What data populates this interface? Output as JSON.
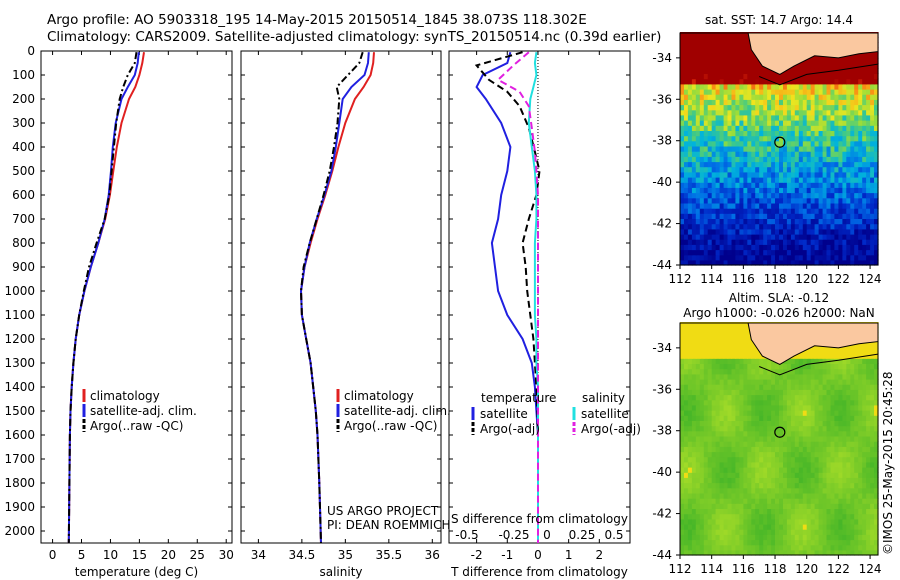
{
  "header": {
    "line1": "Argo profile: AO 5903318_195 14-May-2015 20150514_1845 38.073S 118.302E",
    "line2": "Climatology: CARS2009. Satellite-adjusted climatology: synTS_20150514.nc (0.39d earlier)"
  },
  "sidebar_stamp": "©IMOS 25-May-2015 20:45:28",
  "chart_data": [
    {
      "type": "line",
      "xlabel": "temperature (deg C)",
      "ylabel": "",
      "xlim": [
        -2,
        31
      ],
      "ylim": [
        2050,
        0
      ],
      "xticks": [
        0,
        5,
        10,
        15,
        20,
        25,
        30
      ],
      "yticks": [
        0,
        100,
        200,
        300,
        400,
        500,
        600,
        700,
        800,
        900,
        1000,
        1100,
        1200,
        1300,
        1400,
        1500,
        1600,
        1700,
        1800,
        1900,
        2000
      ],
      "legend": [
        "climatology",
        "satellite-adj. clim.",
        "Argo(..raw -QC)"
      ],
      "legend_colors": [
        "#e02020",
        "#2020e0",
        "#000000"
      ],
      "series": [
        {
          "name": "climatology",
          "color": "#e02020",
          "style": "solid",
          "x": [
            15.8,
            15.5,
            15.0,
            14.3,
            13.2,
            11.9,
            11.1,
            10.5,
            9.9,
            9.1,
            7.9,
            6.6,
            5.5,
            4.6,
            4.0,
            3.6,
            3.3,
            3.1,
            3.0,
            2.9,
            2.8
          ],
          "y": [
            5,
            50,
            100,
            150,
            200,
            300,
            400,
            500,
            600,
            700,
            800,
            900,
            1000,
            1100,
            1200,
            1300,
            1400,
            1500,
            1600,
            1800,
            2050
          ]
        },
        {
          "name": "satellite-adj. clim.",
          "color": "#2020e0",
          "style": "solid",
          "x": [
            14.9,
            14.7,
            14.2,
            13.0,
            11.9,
            10.9,
            10.4,
            10.1,
            9.7,
            9.0,
            7.9,
            6.6,
            5.5,
            4.6,
            4.0,
            3.6,
            3.3,
            3.1,
            3.0,
            2.9,
            2.8
          ],
          "y": [
            5,
            50,
            100,
            150,
            200,
            300,
            400,
            500,
            600,
            700,
            800,
            900,
            1000,
            1100,
            1200,
            1300,
            1400,
            1500,
            1600,
            1800,
            2050
          ]
        },
        {
          "name": "Argo(..raw -QC)",
          "color": "#000000",
          "style": "dashdot",
          "x": [
            14.5,
            14.2,
            13.0,
            12.2,
            11.6,
            11.0,
            10.6,
            10.2,
            9.8,
            9.0,
            7.6,
            6.3,
            5.4,
            4.6,
            4.0,
            3.6,
            3.3,
            3.1,
            3.0,
            2.9,
            2.8
          ],
          "y": [
            5,
            50,
            100,
            150,
            200,
            300,
            400,
            500,
            600,
            700,
            800,
            900,
            1000,
            1100,
            1200,
            1300,
            1400,
            1500,
            1600,
            1800,
            2050
          ]
        }
      ]
    },
    {
      "type": "line",
      "xlabel": "salinity",
      "ylabel": "",
      "xlim": [
        33.8,
        36.1
      ],
      "ylim": [
        2050,
        0
      ],
      "xticks": [
        34,
        34.5,
        35,
        35.5,
        36
      ],
      "legend": [
        "climatology",
        "satellite-adj. clim.",
        "Argo(..raw -QC)"
      ],
      "legend_colors": [
        "#e02020",
        "#2020e0",
        "#000000"
      ],
      "annotation": [
        "US ARGO PROJECT",
        "PI: DEAN ROEMMICH"
      ],
      "series": [
        {
          "name": "climatology",
          "color": "#e02020",
          "style": "solid",
          "x": [
            35.33,
            35.32,
            35.29,
            35.21,
            35.11,
            35.0,
            34.92,
            34.85,
            34.77,
            34.68,
            34.6,
            34.53,
            34.49,
            34.5,
            34.55,
            34.6,
            34.63,
            34.66,
            34.68,
            34.7,
            34.72
          ],
          "y": [
            5,
            50,
            100,
            150,
            200,
            300,
            400,
            500,
            600,
            700,
            800,
            900,
            1000,
            1100,
            1200,
            1300,
            1400,
            1500,
            1600,
            1800,
            2050
          ]
        },
        {
          "name": "satellite-adj. clim.",
          "color": "#2020e0",
          "style": "solid",
          "x": [
            35.27,
            35.26,
            35.22,
            35.07,
            34.97,
            34.93,
            34.89,
            34.84,
            34.76,
            34.67,
            34.59,
            34.53,
            34.49,
            34.5,
            34.55,
            34.6,
            34.63,
            34.66,
            34.68,
            34.7,
            34.72
          ],
          "y": [
            5,
            50,
            100,
            150,
            200,
            300,
            400,
            500,
            600,
            700,
            800,
            900,
            1000,
            1100,
            1200,
            1300,
            1400,
            1500,
            1600,
            1800,
            2050
          ]
        },
        {
          "name": "Argo(..raw -QC)",
          "color": "#000000",
          "style": "dashdot",
          "x": [
            35.2,
            35.16,
            35.03,
            34.9,
            34.93,
            34.91,
            34.87,
            34.82,
            34.75,
            34.67,
            34.59,
            34.52,
            34.49,
            34.5,
            34.55,
            34.6,
            34.63,
            34.66,
            34.68,
            34.7,
            34.72
          ],
          "y": [
            5,
            50,
            100,
            150,
            200,
            300,
            400,
            500,
            600,
            700,
            800,
            900,
            1000,
            1100,
            1200,
            1300,
            1400,
            1500,
            1600,
            1800,
            2050
          ]
        }
      ]
    },
    {
      "type": "line",
      "xlabel": "T difference from climatology",
      "xlabel2": "S difference from climatology",
      "xlim": [
        -2.9,
        3.0
      ],
      "ylim": [
        2050,
        0
      ],
      "xticks_T": [
        -2,
        -1,
        0,
        1,
        2
      ],
      "xticks_S": [
        "-0.5",
        "-0.25",
        "0",
        "0.25",
        "0.5"
      ],
      "legend_headers": [
        "temperature",
        "salinity"
      ],
      "legend_left": [
        "satellite",
        "Argo(-adj)"
      ],
      "legend_left_colors": [
        "#2020e0",
        "#000000"
      ],
      "legend_right": [
        "satellite",
        "Argo(-adj)"
      ],
      "legend_right_colors": [
        "#20e0e0",
        "#e020e0"
      ],
      "series": [
        {
          "name": "satellite",
          "color": "#2020e0",
          "style": "solid",
          "x": [
            -0.9,
            -1.0,
            -1.8,
            -2.0,
            -1.7,
            -1.2,
            -0.9,
            -1.0,
            -1.2,
            -1.3,
            -1.5,
            -1.4,
            -1.3,
            -1.0,
            -0.5,
            -0.2,
            -0.1,
            -0.05,
            0,
            0,
            0
          ],
          "y": [
            5,
            50,
            100,
            150,
            200,
            300,
            400,
            500,
            600,
            700,
            800,
            900,
            1000,
            1100,
            1200,
            1300,
            1400,
            1500,
            1600,
            1800,
            2050
          ]
        },
        {
          "name": "Argo(-adj)",
          "color": "#000000",
          "style": "dashed",
          "x": [
            -0.5,
            -2.0,
            -1.6,
            -1.0,
            -0.6,
            -0.3,
            -0.1,
            0.05,
            -0.05,
            -0.3,
            -0.5,
            -0.4,
            -0.35,
            -0.25,
            -0.15,
            -0.1,
            -0.05,
            -0.02,
            0,
            0,
            0
          ],
          "y": [
            5,
            60,
            120,
            170,
            230,
            320,
            420,
            500,
            600,
            700,
            800,
            900,
            1000,
            1100,
            1200,
            1300,
            1400,
            1500,
            1600,
            1800,
            2050
          ]
        },
        {
          "name": "satellite (S)",
          "color": "#20e0e0",
          "style": "solid",
          "x": [
            -0.05,
            -0.1,
            -0.05,
            -0.15,
            -0.25,
            -0.3,
            -0.2,
            -0.1,
            -0.05,
            -0.05,
            -0.1,
            -0.1,
            -0.1,
            -0.1,
            -0.05,
            -0.05,
            0,
            0,
            0,
            0,
            0
          ],
          "y": [
            5,
            50,
            100,
            150,
            200,
            300,
            400,
            500,
            600,
            700,
            800,
            900,
            1000,
            1100,
            1200,
            1300,
            1400,
            1500,
            1600,
            1800,
            2050
          ]
        },
        {
          "name": "Argo(-adj) (S)",
          "color": "#e020e0",
          "style": "dashed",
          "x": [
            -0.3,
            -0.8,
            -1.3,
            -0.6,
            -0.3,
            -0.2,
            -0.1,
            -0.05,
            0,
            0,
            0,
            0,
            0,
            0,
            0,
            0,
            0,
            0,
            0,
            0,
            0
          ],
          "y": [
            5,
            60,
            120,
            170,
            230,
            320,
            420,
            500,
            600,
            700,
            800,
            900,
            1000,
            1100,
            1200,
            1300,
            1400,
            1500,
            1600,
            1800,
            2050
          ]
        }
      ]
    },
    {
      "type": "heatmap",
      "title": "sat. SST: 14.7  Argo: 14.4",
      "xlim": [
        112,
        124.5
      ],
      "ylim": [
        -44,
        -32.8
      ],
      "xticks": [
        112,
        114,
        116,
        118,
        120,
        122,
        124
      ],
      "yticks": [
        -34,
        -36,
        -38,
        -40,
        -42,
        -44
      ],
      "marker": {
        "lon": 118.302,
        "lat": -38.073
      }
    },
    {
      "type": "heatmap",
      "title": "Altim. SLA: -0.12",
      "subtitle": "Argo h1000: -0.026 h2000: NaN",
      "xlim": [
        112,
        124.5
      ],
      "ylim": [
        -44,
        -32.8
      ],
      "xticks": [
        112,
        114,
        116,
        118,
        120,
        122,
        124
      ],
      "yticks": [
        -34,
        -36,
        -38,
        -40,
        -42,
        -44
      ],
      "marker": {
        "lon": 118.302,
        "lat": -38.073
      }
    }
  ]
}
